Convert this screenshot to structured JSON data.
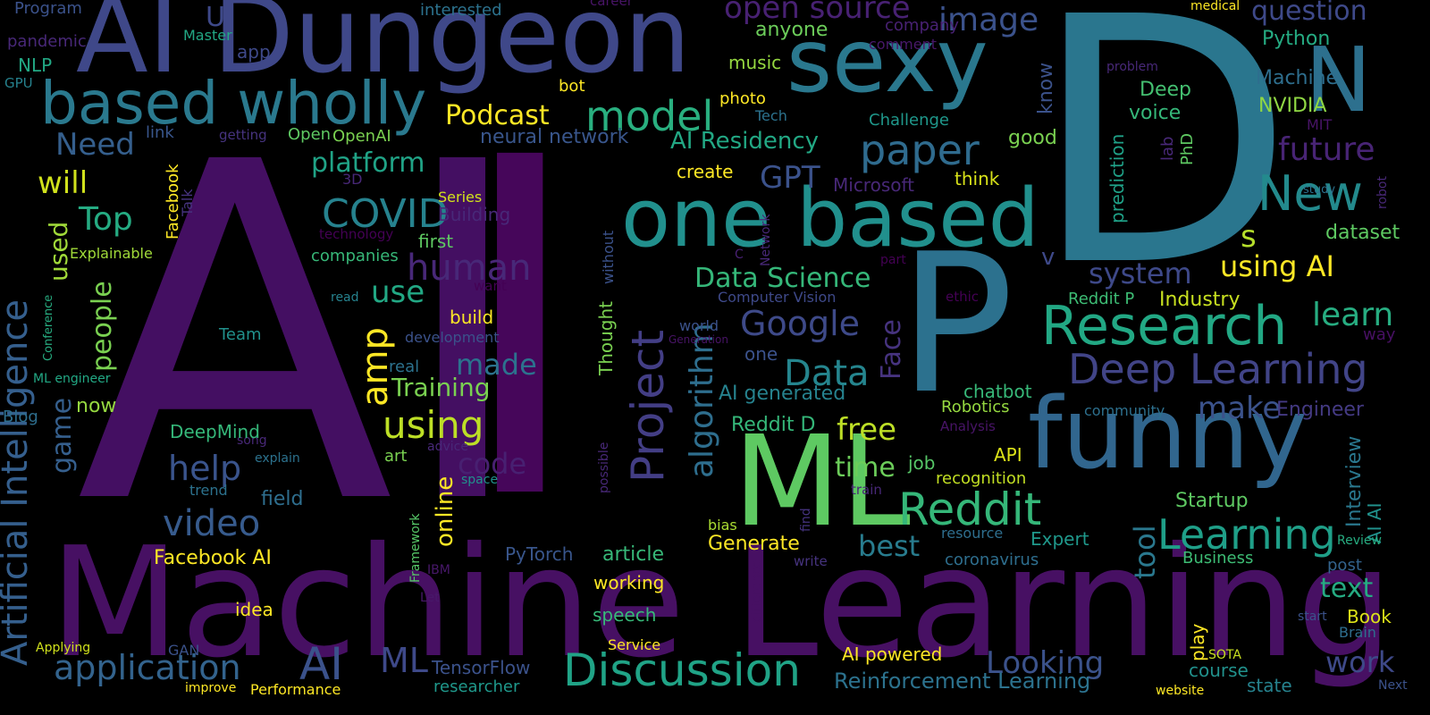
{
  "words": [
    {
      "text": "AI",
      "color": "#440f62"
    },
    {
      "text": "Machine Learning",
      "color": "#471063"
    },
    {
      "text": "D",
      "color": "#2a768e"
    },
    {
      "text": "P",
      "color": "#2c718e"
    },
    {
      "text": "AI Dungeon",
      "color": "#3f4889"
    },
    {
      "text": "I",
      "color": "#46065a"
    },
    {
      "text": "one based",
      "color": "#21908d"
    },
    {
      "text": "funny",
      "color": "#31668e"
    },
    {
      "text": "ML",
      "color": "#5ec962"
    },
    {
      "text": "sexy",
      "color": "#2a788e"
    },
    {
      "text": "based wholly",
      "color": "#2a798e"
    },
    {
      "text": "Artificial Intelligence",
      "color": "#355f8d"
    },
    {
      "text": "N",
      "color": "#2d708e"
    },
    {
      "text": "Research",
      "color": "#22a884"
    },
    {
      "text": "Discussion",
      "color": "#20a386"
    },
    {
      "text": "Deep Learning",
      "color": "#414487"
    },
    {
      "text": "Learning",
      "color": "#1f9f88"
    },
    {
      "text": "Reddit",
      "color": "#35b779"
    },
    {
      "text": "Project",
      "color": "#433e85"
    },
    {
      "text": "New",
      "color": "#238a8d"
    },
    {
      "text": "paper",
      "color": "#2f6b8e"
    },
    {
      "text": "model",
      "color": "#29af7f"
    },
    {
      "text": "using",
      "color": "#bddf26"
    },
    {
      "text": "video",
      "color": "#375b8d"
    },
    {
      "text": "application",
      "color": "#33638d"
    },
    {
      "text": "AI",
      "color": "#3b528b"
    },
    {
      "text": "COVID",
      "color": "#26828e"
    },
    {
      "text": "human",
      "color": "#482878"
    },
    {
      "text": "Data",
      "color": "#25858e"
    },
    {
      "text": "algorithm",
      "color": "#2e6e8e"
    },
    {
      "text": "Google",
      "color": "#3e4a89"
    },
    {
      "text": "open source",
      "color": "#482173"
    },
    {
      "text": "image",
      "color": "#3b528b"
    },
    {
      "text": "question",
      "color": "#3e4989"
    },
    {
      "text": "Podcast",
      "color": "#fde725"
    },
    {
      "text": "Top",
      "color": "#25ab82"
    },
    {
      "text": "help",
      "color": "#3a548c"
    },
    {
      "text": "future",
      "color": "#482475"
    },
    {
      "text": "learn",
      "color": "#27ad81"
    },
    {
      "text": "using AI",
      "color": "#fde725"
    },
    {
      "text": "Data Science",
      "color": "#35b779"
    },
    {
      "text": "system",
      "color": "#3e4989"
    },
    {
      "text": "AI Residency",
      "color": "#22a884"
    },
    {
      "text": "platform",
      "color": "#20a386"
    },
    {
      "text": "Looking",
      "color": "#3b528b"
    },
    {
      "text": "Reinforcement Learning",
      "color": "#2c728e"
    },
    {
      "text": "Face",
      "color": "#46337f"
    },
    {
      "text": "amp",
      "color": "#fde725"
    },
    {
      "text": "will",
      "color": "#d0e11c"
    },
    {
      "text": "Need",
      "color": "#355f8d"
    },
    {
      "text": "used",
      "color": "#a0da39"
    },
    {
      "text": "people",
      "color": "#7ad151"
    },
    {
      "text": "game",
      "color": "#355f8d"
    },
    {
      "text": "Training",
      "color": "#7ad151"
    },
    {
      "text": "made",
      "color": "#2c728e"
    },
    {
      "text": "code",
      "color": "#482071"
    },
    {
      "text": "use",
      "color": "#22a884"
    },
    {
      "text": "make",
      "color": "#3b528b"
    },
    {
      "text": "free",
      "color": "#bddf26"
    },
    {
      "text": "time",
      "color": "#6ccd5a"
    },
    {
      "text": "best",
      "color": "#287c8e"
    },
    {
      "text": "work",
      "color": "#3e4989"
    },
    {
      "text": "text",
      "color": "#25ab82"
    },
    {
      "text": "GPT",
      "color": "#3b528b"
    },
    {
      "text": "s",
      "color": "#b5de2b"
    },
    {
      "text": "tool",
      "color": "#2a788e"
    },
    {
      "text": "online",
      "color": "#fde725"
    },
    {
      "text": "AI generated",
      "color": "#26828e"
    },
    {
      "text": "Generate",
      "color": "#fde725"
    },
    {
      "text": "neural network",
      "color": "#39568c"
    },
    {
      "text": "Startup",
      "color": "#5ec962"
    },
    {
      "text": "Interview",
      "color": "#2a788e"
    },
    {
      "text": "AI AI",
      "color": "#21918c"
    },
    {
      "text": "Engineer",
      "color": "#443a83"
    },
    {
      "text": "dataset",
      "color": "#5ec962"
    },
    {
      "text": "NVIDIA",
      "color": "#8fd744"
    },
    {
      "text": "Python",
      "color": "#25ab82"
    },
    {
      "text": "Machine",
      "color": "#2e6e8e"
    },
    {
      "text": "prediction",
      "color": "#1fa187"
    },
    {
      "text": "Deep",
      "color": "#44bf70"
    },
    {
      "text": "voice",
      "color": "#35b779"
    },
    {
      "text": "PhD",
      "color": "#5ec962"
    },
    {
      "text": "lab",
      "color": "#482878"
    },
    {
      "text": "know",
      "color": "#3b528b"
    },
    {
      "text": "Challenge",
      "color": "#1f988b"
    },
    {
      "text": "good",
      "color": "#7ad151"
    },
    {
      "text": "think",
      "color": "#d8e219"
    },
    {
      "text": "Microsoft",
      "color": "#482878"
    },
    {
      "text": "Tech",
      "color": "#2c728e"
    },
    {
      "text": "photo",
      "color": "#fde725"
    },
    {
      "text": "music",
      "color": "#95d840"
    },
    {
      "text": "anyone",
      "color": "#6ccd5a"
    },
    {
      "text": "company",
      "color": "#482173"
    },
    {
      "text": "comment",
      "color": "#48186a"
    },
    {
      "text": "bot",
      "color": "#fde725"
    },
    {
      "text": "create",
      "color": "#fde725"
    },
    {
      "text": "Open",
      "color": "#5ec962"
    },
    {
      "text": "OpenAI",
      "color": "#7ad151"
    },
    {
      "text": "first",
      "color": "#5ec962"
    },
    {
      "text": "companies",
      "color": "#37b878"
    },
    {
      "text": "Building",
      "color": "#482878"
    },
    {
      "text": "Series",
      "color": "#d2e21b"
    },
    {
      "text": "3D",
      "color": "#482878"
    },
    {
      "text": "technology",
      "color": "#440154"
    },
    {
      "text": "Computer Vision",
      "color": "#3e4989"
    },
    {
      "text": "world",
      "color": "#3b528b"
    },
    {
      "text": "Generation",
      "color": "#481467"
    },
    {
      "text": "one",
      "color": "#3b528b"
    },
    {
      "text": "development",
      "color": "#3b528b"
    },
    {
      "text": "real",
      "color": "#2c728e"
    },
    {
      "text": "build",
      "color": "#fde725"
    },
    {
      "text": "read",
      "color": "#26828e"
    },
    {
      "text": "want",
      "color": "#440154"
    },
    {
      "text": "Thought",
      "color": "#7ad151"
    },
    {
      "text": "without",
      "color": "#3b528b"
    },
    {
      "text": "Network",
      "color": "#482878"
    },
    {
      "text": "C",
      "color": "#482173"
    },
    {
      "text": "v",
      "color": "#3e4989"
    },
    {
      "text": "part",
      "color": "#440154"
    },
    {
      "text": "Reddit P",
      "color": "#3dbc74"
    },
    {
      "text": "Industry",
      "color": "#c8e020"
    },
    {
      "text": "ethic",
      "color": "#440154"
    },
    {
      "text": "way",
      "color": "#471063"
    },
    {
      "text": "chatbot",
      "color": "#37b878"
    },
    {
      "text": "Robotics",
      "color": "#95d840"
    },
    {
      "text": "community",
      "color": "#2d708e"
    },
    {
      "text": "Analysis",
      "color": "#481467"
    },
    {
      "text": "Reddit D",
      "color": "#35b779"
    },
    {
      "text": "API",
      "color": "#dde318"
    },
    {
      "text": "job",
      "color": "#56c667"
    },
    {
      "text": "recognition",
      "color": "#c2df23"
    },
    {
      "text": "resource",
      "color": "#2e6e8e"
    },
    {
      "text": "Expert",
      "color": "#1f988b"
    },
    {
      "text": "coronavirus",
      "color": "#2e6e8e"
    },
    {
      "text": "Business",
      "color": "#3dbc74"
    },
    {
      "text": "post",
      "color": "#33638d"
    },
    {
      "text": "Review",
      "color": "#27ad81"
    },
    {
      "text": "Brain",
      "color": "#2e6e8e"
    },
    {
      "text": "Book",
      "color": "#dde318"
    },
    {
      "text": "start",
      "color": "#3b528b"
    },
    {
      "text": "course",
      "color": "#21918c"
    },
    {
      "text": "state",
      "color": "#26828e"
    },
    {
      "text": "SOTA",
      "color": "#c8e020"
    },
    {
      "text": "website",
      "color": "#fde725"
    },
    {
      "text": "Next",
      "color": "#3b528b"
    },
    {
      "text": "play",
      "color": "#fde725"
    },
    {
      "text": "AI powered",
      "color": "#fde725"
    },
    {
      "text": "TensorFlow",
      "color": "#3b528b"
    },
    {
      "text": "researcher",
      "color": "#1f988b"
    },
    {
      "text": "speech",
      "color": "#37b878"
    },
    {
      "text": "working",
      "color": "#fde725"
    },
    {
      "text": "Service",
      "color": "#fde725"
    },
    {
      "text": "article",
      "color": "#37b878"
    },
    {
      "text": "PyTorch",
      "color": "#39568c"
    },
    {
      "text": "bias",
      "color": "#aadc32"
    },
    {
      "text": "write",
      "color": "#46337f"
    },
    {
      "text": "find",
      "color": "#46337f"
    },
    {
      "text": "train",
      "color": "#482878"
    },
    {
      "text": "difference",
      "color": "#471063"
    },
    {
      "text": "possible",
      "color": "#482878"
    },
    {
      "text": "space",
      "color": "#21918c"
    },
    {
      "text": "advice",
      "color": "#482878"
    },
    {
      "text": "art",
      "color": "#7ad151"
    },
    {
      "text": "Framework",
      "color": "#56c667"
    },
    {
      "text": "IBM",
      "color": "#48186a"
    },
    {
      "text": "Let",
      "color": "#48186a"
    },
    {
      "text": "ML",
      "color": "#3e4989"
    },
    {
      "text": "GAN",
      "color": "#3b528b"
    },
    {
      "text": "improve",
      "color": "#fde725"
    },
    {
      "text": "Performance",
      "color": "#fde725"
    },
    {
      "text": "Applying",
      "color": "#d0e11c"
    },
    {
      "text": "idea",
      "color": "#fde725"
    },
    {
      "text": "Facebook AI",
      "color": "#fde725"
    },
    {
      "text": "field",
      "color": "#2e6e8e"
    },
    {
      "text": "trend",
      "color": "#2c728e"
    },
    {
      "text": "explain",
      "color": "#2c728e"
    },
    {
      "text": "song",
      "color": "#482878"
    },
    {
      "text": "DeepMind",
      "color": "#35b779"
    },
    {
      "text": "now",
      "color": "#95d840"
    },
    {
      "text": "Blog",
      "color": "#2e6e8e"
    },
    {
      "text": "ML engineer",
      "color": "#22a884"
    },
    {
      "text": "Conference",
      "color": "#27ad81"
    },
    {
      "text": "Team",
      "color": "#21918c"
    },
    {
      "text": "Explainable",
      "color": "#a0da39"
    },
    {
      "text": "Facebook",
      "color": "#fde725"
    },
    {
      "text": "Talk",
      "color": "#46337f"
    },
    {
      "text": "link",
      "color": "#39568c"
    },
    {
      "text": "getting",
      "color": "#46337f"
    },
    {
      "text": "U",
      "color": "#3e4989"
    },
    {
      "text": "Master",
      "color": "#22a884"
    },
    {
      "text": "app",
      "color": "#3e4989"
    },
    {
      "text": "interested",
      "color": "#2c728e"
    },
    {
      "text": "Program",
      "color": "#3b528b"
    },
    {
      "text": "pandemic",
      "color": "#482878"
    },
    {
      "text": "NLP",
      "color": "#22a884"
    },
    {
      "text": "GPU",
      "color": "#26828e"
    },
    {
      "text": "career",
      "color": "#481467"
    },
    {
      "text": "medical",
      "color": "#fde725"
    },
    {
      "text": "problem",
      "color": "#482878"
    },
    {
      "text": "MIT",
      "color": "#481467"
    },
    {
      "text": "robot",
      "color": "#482878"
    },
    {
      "text": "study",
      "color": "#2c728e"
    }
  ]
}
